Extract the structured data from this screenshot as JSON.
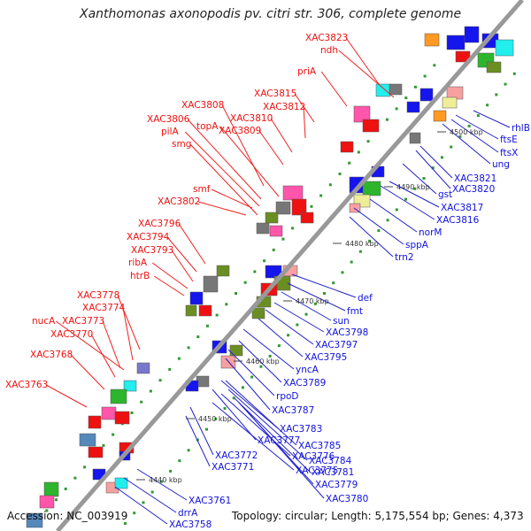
{
  "title": "Xanthomonas axonopodis pv. citri str. 306, complete genome",
  "footer": {
    "accession": "Accession: NC_003919",
    "topology": "Topology: circular; Length: 5,175,554 bp; Genes: 4,373"
  },
  "colors": {
    "backbone": "#999999",
    "left_label": "#ee1111",
    "right_label": "#1111dd",
    "leader_red": "#ee2222",
    "leader_blue": "#2222cc",
    "tick": "#339933",
    "gene_red": "#ee1111",
    "gene_blue": "#1515ee",
    "gene_olive": "#6b8e23",
    "gene_green": "#2db52d",
    "gene_pink": "#ff55aa",
    "gene_gray": "#777777",
    "gene_cyan": "#22eeee",
    "gene_orange": "#ff9922",
    "gene_lightpink": "#f8a0a0",
    "gene_steel": "#5588bb",
    "gene_khaki": "#eeee99",
    "gene_purple": "#7777cc"
  },
  "kbp_markers": [
    "4440 kbp",
    "4450 kbp",
    "4460 kbp",
    "4470 kbp",
    "4480 kbp",
    "4490 kbp",
    "4500 kbp"
  ],
  "left_genes": [
    "XAC3823",
    "ndh",
    "priA",
    "XAC3815",
    "XAC3812",
    "XAC3810",
    "XAC3809",
    "XAC3808",
    "topA",
    "XAC3806",
    "pilA",
    "smg",
    "smf",
    "XAC3802",
    "XAC3796",
    "XAC3794",
    "XAC3793",
    "ribA",
    "htrB",
    "XAC3778",
    "XAC3774",
    "nucA",
    "XAC3773",
    "XAC3770",
    "XAC3768",
    "XAC3763"
  ],
  "right_genes": [
    "rhlB",
    "ftsE",
    "ftsX",
    "ung",
    "XAC3821",
    "XAC3820",
    "gst",
    "XAC3817",
    "XAC3816",
    "norM",
    "sppA",
    "trn2",
    "def",
    "fmt",
    "sun",
    "XAC3798",
    "XAC3797",
    "XAC3795",
    "yncA",
    "XAC3789",
    "rpoD",
    "XAC3787",
    "XAC3783",
    "XAC3785",
    "XAC3777",
    "XAC3784",
    "XAC3772",
    "XAC3776",
    "XAC3781",
    "XAC3771",
    "XAC3775",
    "XAC3779",
    "XAC3780",
    "XAC3761",
    "drrA",
    "XAC3758"
  ]
}
